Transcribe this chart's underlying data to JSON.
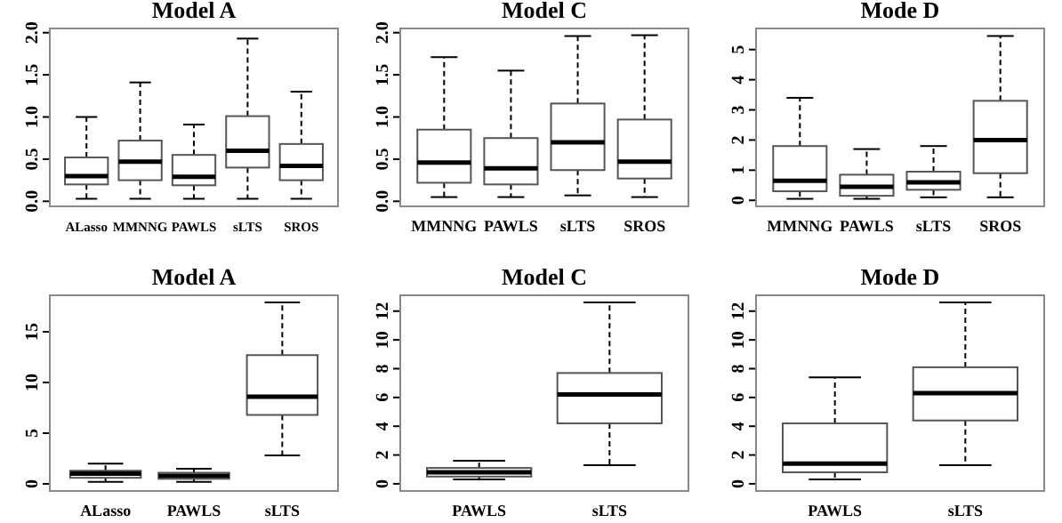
{
  "chart_data": [
    {
      "type": "box",
      "title": "Model A",
      "categories": [
        "ALasso",
        "MMNNG",
        "PAWLS",
        "sLTS",
        "SROS"
      ],
      "ylim": [
        -0.06,
        2.05
      ],
      "yticks": [
        {
          "value": 0,
          "label": "0.0"
        },
        {
          "value": 0.5,
          "label": "0.5"
        },
        {
          "value": 1,
          "label": "1.0"
        },
        {
          "value": 1.5,
          "label": "1.5"
        },
        {
          "value": 2,
          "label": "2.0"
        }
      ],
      "boxes": [
        {
          "low": 0.03,
          "q1": 0.2,
          "median": 0.3,
          "q3": 0.52,
          "high": 1.0
        },
        {
          "low": 0.03,
          "q1": 0.25,
          "median": 0.47,
          "q3": 0.72,
          "high": 1.41
        },
        {
          "low": 0.03,
          "q1": 0.19,
          "median": 0.29,
          "q3": 0.55,
          "high": 0.91
        },
        {
          "low": 0.03,
          "q1": 0.4,
          "median": 0.6,
          "q3": 1.01,
          "high": 1.93
        },
        {
          "low": 0.03,
          "q1": 0.25,
          "median": 0.42,
          "q3": 0.68,
          "high": 1.3
        }
      ]
    },
    {
      "type": "box",
      "title": "Model C",
      "categories": [
        "MMNNG",
        "PAWLS",
        "sLTS",
        "SROS"
      ],
      "ylim": [
        -0.06,
        2.05
      ],
      "yticks": [
        {
          "value": 0,
          "label": "0.0"
        },
        {
          "value": 0.5,
          "label": "0.5"
        },
        {
          "value": 1,
          "label": "1.0"
        },
        {
          "value": 1.5,
          "label": "1.5"
        },
        {
          "value": 2,
          "label": "2.0"
        }
      ],
      "boxes": [
        {
          "low": 0.05,
          "q1": 0.22,
          "median": 0.46,
          "q3": 0.85,
          "high": 1.71
        },
        {
          "low": 0.05,
          "q1": 0.2,
          "median": 0.39,
          "q3": 0.75,
          "high": 1.55
        },
        {
          "low": 0.07,
          "q1": 0.37,
          "median": 0.7,
          "q3": 1.16,
          "high": 1.96
        },
        {
          "low": 0.05,
          "q1": 0.27,
          "median": 0.47,
          "q3": 0.97,
          "high": 1.97
        }
      ]
    },
    {
      "type": "box",
      "title": "Mode  D",
      "categories": [
        "MMNNG",
        "PAWLS",
        "sLTS",
        "SROS"
      ],
      "ylim": [
        -0.2,
        5.7
      ],
      "yticks": [
        0,
        1,
        2,
        3,
        4,
        5
      ],
      "boxes": [
        {
          "low": 0.05,
          "q1": 0.3,
          "median": 0.65,
          "q3": 1.8,
          "high": 3.4
        },
        {
          "low": 0.05,
          "q1": 0.15,
          "median": 0.45,
          "q3": 0.85,
          "high": 1.7
        },
        {
          "low": 0.1,
          "q1": 0.35,
          "median": 0.6,
          "q3": 0.95,
          "high": 1.8
        },
        {
          "low": 0.1,
          "q1": 0.9,
          "median": 2.0,
          "q3": 3.3,
          "high": 5.45
        }
      ]
    },
    {
      "type": "box",
      "title": "Model A",
      "categories": [
        "ALasso",
        "PAWLS",
        "sLTS"
      ],
      "ylim": [
        -0.7,
        18.6
      ],
      "yticks": [
        0,
        5,
        10,
        15
      ],
      "boxes": [
        {
          "low": 0.2,
          "q1": 0.6,
          "median": 1.0,
          "q3": 1.3,
          "high": 2.0
        },
        {
          "low": 0.2,
          "q1": 0.5,
          "median": 0.8,
          "q3": 1.1,
          "high": 1.5
        },
        {
          "low": 2.8,
          "q1": 6.8,
          "median": 8.6,
          "q3": 12.7,
          "high": 17.9
        }
      ]
    },
    {
      "type": "box",
      "title": "Model C",
      "categories": [
        "PAWLS",
        "sLTS"
      ],
      "ylim": [
        -0.5,
        13.1
      ],
      "yticks": [
        0,
        2,
        4,
        6,
        8,
        10,
        12
      ],
      "boxes": [
        {
          "low": 0.3,
          "q1": 0.5,
          "median": 0.8,
          "q3": 1.1,
          "high": 1.6
        },
        {
          "low": 1.3,
          "q1": 4.2,
          "median": 6.2,
          "q3": 7.7,
          "high": 12.6
        }
      ]
    },
    {
      "type": "box",
      "title": "Mode  D",
      "categories": [
        "PAWLS",
        "sLTS"
      ],
      "ylim": [
        -0.5,
        13.1
      ],
      "yticks": [
        0,
        2,
        4,
        6,
        8,
        10,
        12
      ],
      "boxes": [
        {
          "low": 0.3,
          "q1": 0.8,
          "median": 1.4,
          "q3": 4.2,
          "high": 7.4
        },
        {
          "low": 1.3,
          "q1": 4.4,
          "median": 6.3,
          "q3": 8.1,
          "high": 12.6
        }
      ]
    }
  ]
}
